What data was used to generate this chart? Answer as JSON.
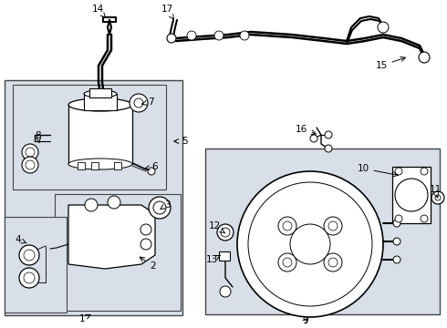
{
  "bg_color": "#ffffff",
  "line_color": "#000000",
  "box_fill": "#d8e4f0",
  "figsize": [
    4.9,
    3.6
  ],
  "dpi": 100
}
